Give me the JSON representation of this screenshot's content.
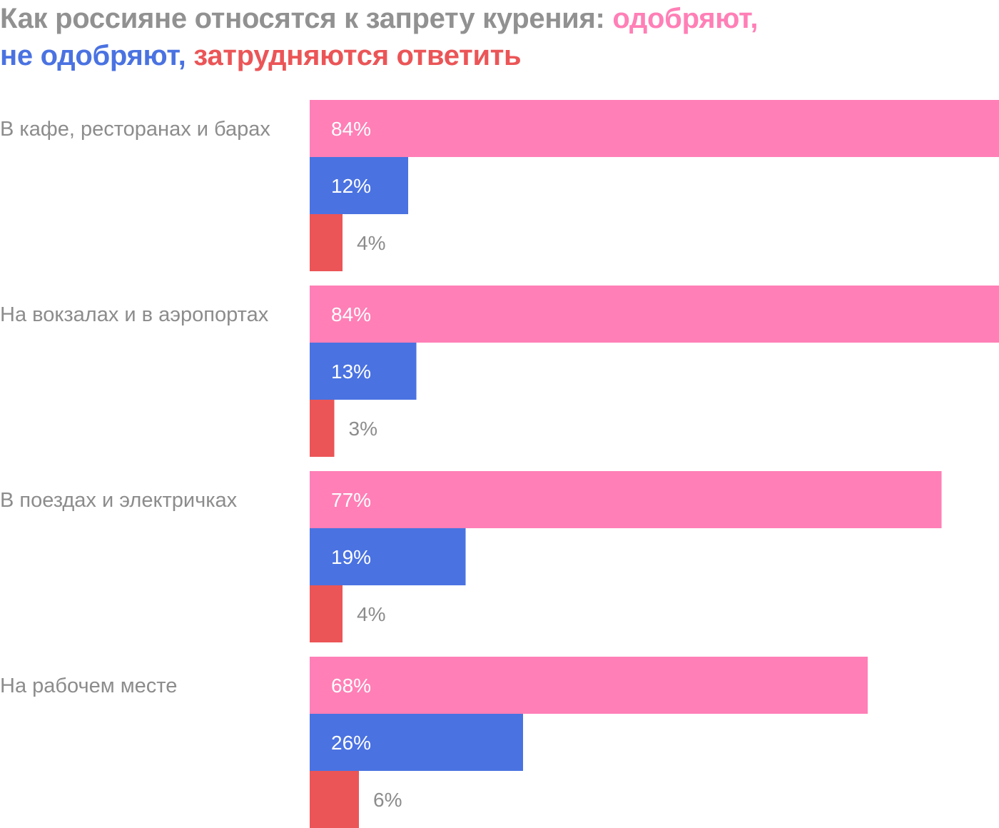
{
  "title": {
    "prefix": "Как россияне относятся к запрету курения: ",
    "approve": "одобряют,",
    "disapprove": "не одобряют,",
    "hard_to_say": "затрудняются ответить"
  },
  "colors": {
    "title_gray": "#919191",
    "label_gray": "#8c8c8c",
    "approve": "#ff7fb6",
    "disapprove": "#4a72e1",
    "hard_to_say": "#eb5557",
    "value_light": "#ffffff"
  },
  "chart_data": {
    "type": "bar",
    "orientation": "horizontal",
    "title": "Как россияне относятся к запрету курения: одобряют, не одобряют, затрудняются ответить",
    "categories": [
      "В кафе, ресторанах и барах",
      "На вокзалах и в аэропортах",
      "В поездах и электричках",
      "На рабочем месте"
    ],
    "series": [
      {
        "name": "одобряют",
        "color": "#ff7fb6",
        "values": [
          84,
          84,
          77,
          68
        ]
      },
      {
        "name": "не одобряют",
        "color": "#4a72e1",
        "values": [
          12,
          13,
          19,
          26
        ]
      },
      {
        "name": "затрудняются ответить",
        "color": "#eb5557",
        "values": [
          4,
          3,
          4,
          6
        ]
      }
    ],
    "unit": "%",
    "xlim": [
      0,
      84
    ],
    "grid": false,
    "legend": "title"
  }
}
